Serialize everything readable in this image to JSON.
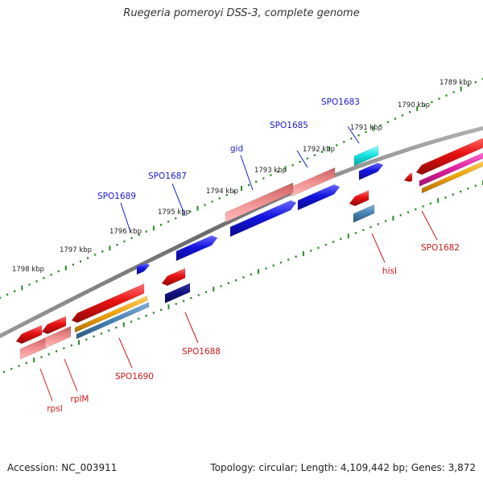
{
  "title": "Ruegeria pomeroyi DSS-3, complete genome",
  "footer": {
    "accession": "Accession: NC_003911",
    "stats": "Topology: circular; Length: 4,109,442 bp; Genes: 3,872"
  },
  "scale_labels": [
    "1789 kbp",
    "1790 kbp",
    "1791 kbp",
    "1792 kbp",
    "1793 kbp",
    "1794 kbp",
    "1795 kbp",
    "1796 kbp",
    "1797 kbp",
    "1798 kbp"
  ],
  "forward_gene_labels": [
    "SPO1683",
    "SPO1685",
    "gid",
    "SPO1687",
    "SPO1689"
  ],
  "reverse_gene_labels": [
    "SPO1682",
    "hisI",
    "SPO1688",
    "SPO1690",
    "rplM",
    "rpsI"
  ],
  "colors": {
    "backbone": "#7a7a7a",
    "tick": "#2a8a2a",
    "forward_label": "#1a1acc",
    "reverse_label": "#cc1a1a",
    "blue": "#1414e0",
    "red": "#e01414",
    "pink": "#e88080",
    "cyan": "#10e0e0",
    "navy": "#101080",
    "steelblue": "#4682b4",
    "orange": "#f0a000",
    "magenta": "#e020a0"
  }
}
